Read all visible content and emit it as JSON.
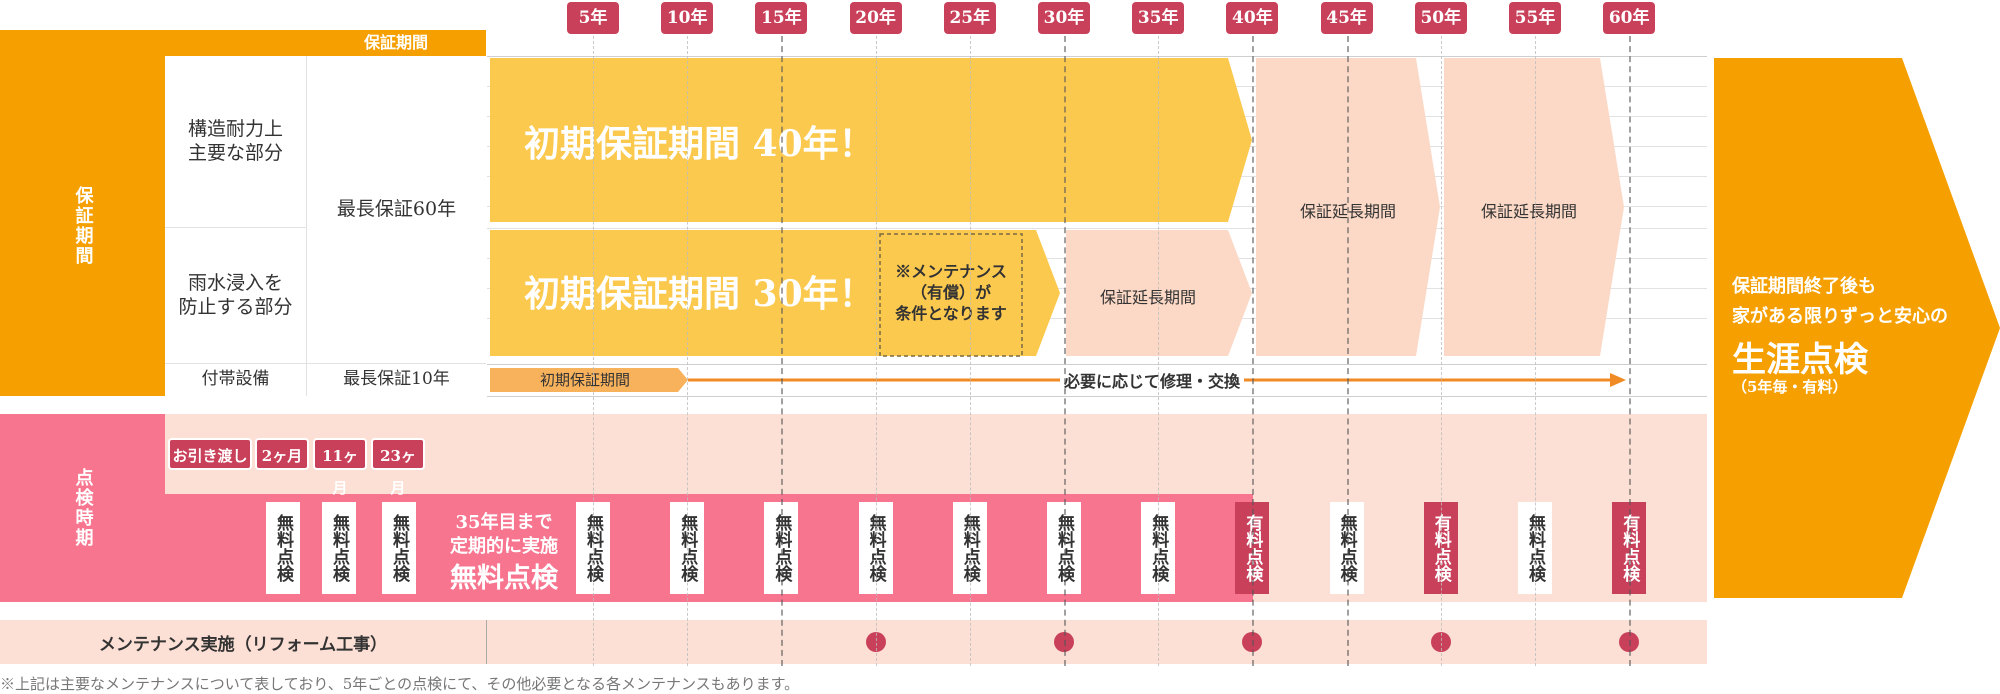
{
  "years": [
    "5年",
    "10年",
    "15年",
    "20年",
    "25年",
    "30年",
    "35年",
    "40年",
    "45年",
    "50年",
    "55年",
    "60年"
  ],
  "header": {
    "warranty_period": "保証期間"
  },
  "warranty": {
    "section_label": "保証期間",
    "rows": [
      {
        "part": "構造耐力上\n主要な部分",
        "max": "最長保証60年"
      },
      {
        "part": "雨水浸入を\n防止する部分",
        "max": ""
      },
      {
        "part": "付帯設備",
        "max": "最長保証10年"
      }
    ],
    "initial_40": "初期保証期間 40年！",
    "initial_30": "初期保証期間 30年！",
    "maintenance_note": "※メンテナンス\n（有償）が\n条件となります",
    "extension": "保証延長期間",
    "initial_short": "初期保証期間",
    "repair": "必要に応じて修理・交換"
  },
  "inspection": {
    "section_label": "点検時期",
    "early": [
      "お引き渡し",
      "2ヶ月",
      "11ヶ月",
      "23ヶ月"
    ],
    "free": "無料点検",
    "paid": "有料点検",
    "until35_line1": "35年目まで",
    "until35_line2": "定期的に実施",
    "until35_line3": "無料点検"
  },
  "maintenance": {
    "label": "メンテナンス実施（リフォーム工事）"
  },
  "lifetime": {
    "line1": "保証期間終了後も",
    "line2": "家がある限りずっと安心の",
    "big": "生涯点検",
    "note": "（5年毎・有料）"
  },
  "footnote": "※上記は主要なメンテナンスについて表しており、5年ごとの点検にて、その他必要となる各メンテナンスもあります。",
  "colors": {
    "orange": "#f5a000",
    "yellow": "#fcc646",
    "peach": "#fde0d5",
    "pink": "#f7758f",
    "red": "#c9405a"
  }
}
